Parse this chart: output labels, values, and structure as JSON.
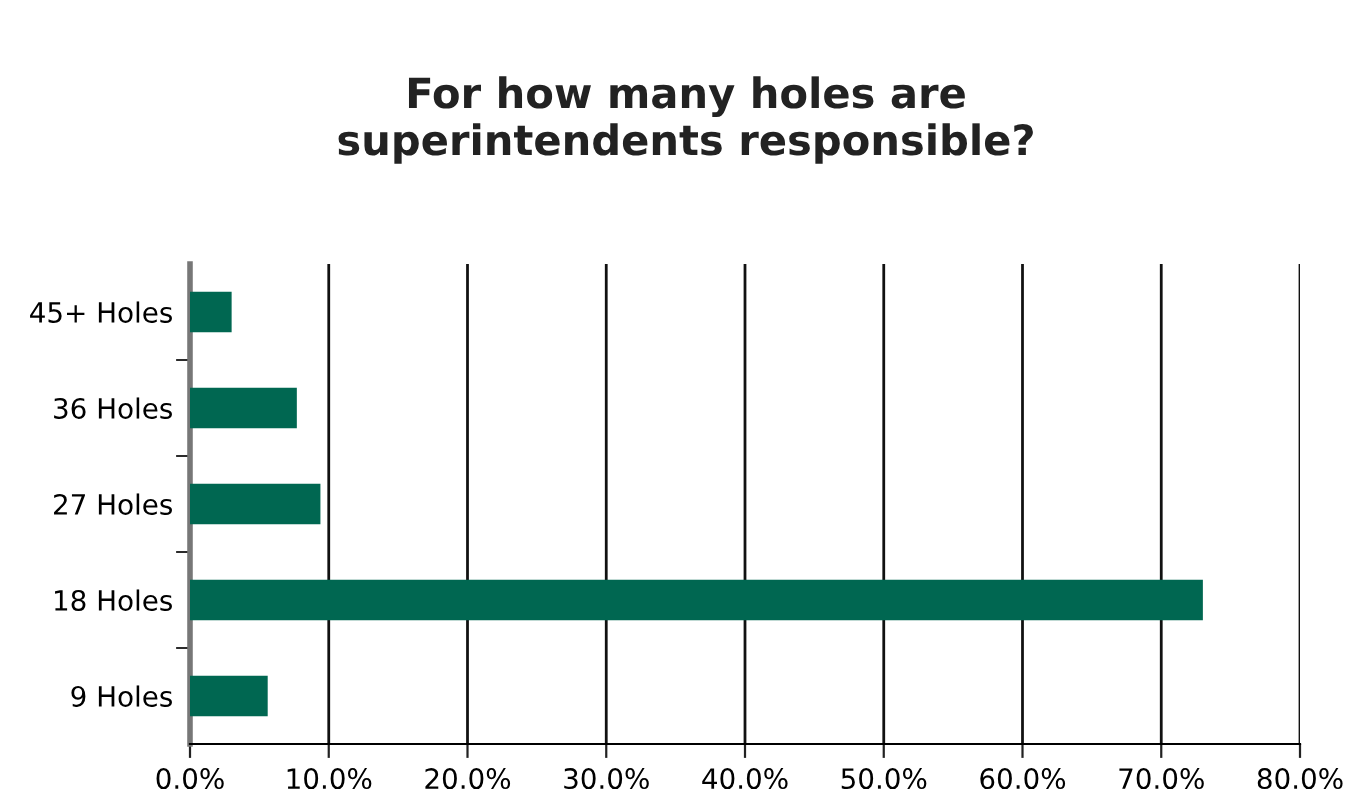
{
  "chart_data": {
    "type": "bar",
    "orientation": "horizontal",
    "title": "For how many holes are\nsuperintendents responsible?",
    "categories": [
      "45+ Holes",
      "36 Holes",
      "27 Holes",
      "18 Holes",
      "9 Holes"
    ],
    "values": [
      3.0,
      7.7,
      9.4,
      73.0,
      5.6
    ],
    "color": "#006751",
    "xlim": [
      0,
      80
    ],
    "xticks": [
      {
        "value": 0,
        "label": "0.0%"
      },
      {
        "value": 10,
        "label": "10.0%"
      },
      {
        "value": 20,
        "label": "20.0%"
      },
      {
        "value": 30,
        "label": "30.0%"
      },
      {
        "value": 40,
        "label": "40.0%"
      },
      {
        "value": 50,
        "label": "50.0%"
      },
      {
        "value": 60,
        "label": "60.0%"
      },
      {
        "value": 70,
        "label": "70.0%"
      },
      {
        "value": 80,
        "label": "80.0%"
      }
    ],
    "grid": "x"
  }
}
